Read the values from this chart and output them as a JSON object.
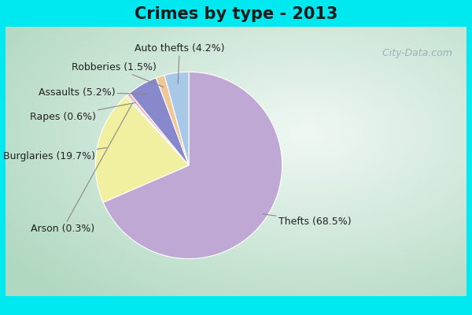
{
  "title": "Crimes by type - 2013",
  "title_fontsize": 15,
  "slices": [
    {
      "label": "Thefts (68.5%)",
      "value": 68.5,
      "color": "#c0a8d4"
    },
    {
      "label": "Burglaries (19.7%)",
      "value": 19.7,
      "color": "#f0f0a0"
    },
    {
      "label": "Arson (0.3%)",
      "value": 0.3,
      "color": "#c8dfc8"
    },
    {
      "label": "Rapes (0.6%)",
      "value": 0.6,
      "color": "#f0b8b8"
    },
    {
      "label": "Assaults (5.2%)",
      "value": 5.2,
      "color": "#8888cc"
    },
    {
      "label": "Robberies (1.5%)",
      "value": 1.5,
      "color": "#f0c898"
    },
    {
      "label": "Auto thefts (4.2%)",
      "value": 4.2,
      "color": "#a8c8e8"
    }
  ],
  "bg_cyan": "#00e8f0",
  "watermark": "  City-Data.com",
  "label_fontsize": 9
}
